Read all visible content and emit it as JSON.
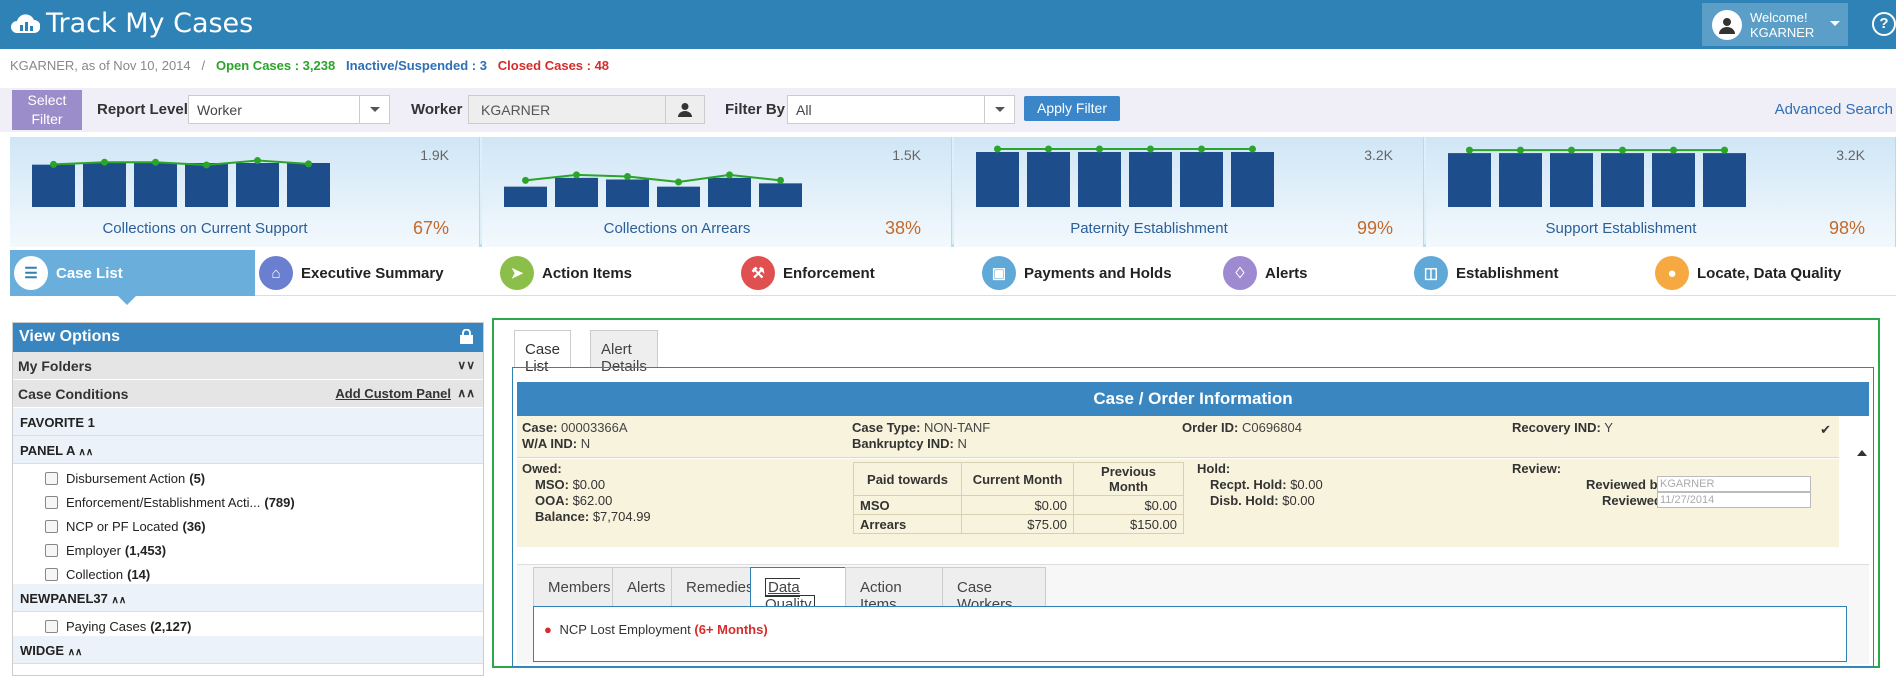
{
  "header": {
    "app_title": "Track My Cases",
    "welcome_line1": "Welcome!",
    "welcome_user": "KGARNER",
    "help": "?"
  },
  "status": {
    "prefix": "KGARNER, as of Nov 10, 2014",
    "sep": "/",
    "open": "Open Cases : 3,238",
    "inactive": "Inactive/Suspended : 3",
    "closed": "Closed Cases : 48"
  },
  "filters": {
    "select_filter": "Select Filter",
    "report_level_label": "Report Level",
    "report_level_value": "Worker",
    "worker_label": "Worker",
    "worker_value": "KGARNER",
    "filter_by_label": "Filter By",
    "filter_by_value": "All",
    "apply_label": "Apply Filter",
    "advanced_search": "Advanced Search"
  },
  "kpis": [
    {
      "name": "Collections on Current Support",
      "max": "1.9K",
      "pct": "67%",
      "bars": [
        0.77,
        0.8,
        0.8,
        0.8,
        0.8,
        0.8
      ],
      "line": [
        0.72,
        0.76,
        0.76,
        0.71,
        0.79,
        0.73
      ]
    },
    {
      "name": "Collections on Arrears",
      "max": "1.5K",
      "pct": "38%",
      "bars": [
        0.37,
        0.53,
        0.5,
        0.37,
        0.53,
        0.43
      ],
      "line": [
        0.43,
        0.53,
        0.5,
        0.4,
        0.53,
        0.43
      ]
    },
    {
      "name": "Paternity Establishment",
      "max": "3.2K",
      "pct": "99%",
      "bars": [
        1,
        1,
        1,
        1,
        1,
        1
      ],
      "line": [
        1,
        1,
        1,
        1,
        1,
        1
      ]
    },
    {
      "name": "Support Establishment",
      "max": "3.2K",
      "pct": "98%",
      "bars": [
        0.98,
        0.98,
        0.98,
        0.98,
        0.98,
        0.98
      ],
      "line": [
        0.98,
        0.98,
        0.98,
        0.98,
        0.98,
        0.98
      ]
    }
  ],
  "colors": {
    "accent": "#2f82b5",
    "bar": "#1d4d8a",
    "line": "#2aa52a"
  },
  "tabs": [
    {
      "label": "Case List",
      "icon": "list-icon",
      "color": "#6aaedc"
    },
    {
      "label": "Executive Summary",
      "icon": "home-icon",
      "color": "#6a7fd0"
    },
    {
      "label": "Action Items",
      "icon": "send-icon",
      "color": "#8cbf4a"
    },
    {
      "label": "Enforcement",
      "icon": "gavel-icon",
      "color": "#e05050"
    },
    {
      "label": "Payments and Holds",
      "icon": "money-icon",
      "color": "#5fa8d8"
    },
    {
      "label": "Alerts",
      "icon": "bell-icon",
      "color": "#9d8ad0"
    },
    {
      "label": "Establishment",
      "icon": "briefcase-icon",
      "color": "#5fa8d8"
    },
    {
      "label": "Locate, Data Quality",
      "icon": "location-pin-icon",
      "color": "#f5a940"
    }
  ],
  "left": {
    "view_options": "View Options",
    "my_folders": "My Folders",
    "case_conditions": "Case Conditions",
    "add_custom_panel": "Add Custom Panel",
    "favorite": "FAVORITE 1",
    "panel_a": "PANEL A",
    "panel_a_items": [
      {
        "label": "Disbursement Action",
        "count": "(5)"
      },
      {
        "label": "Enforcement/Establishment Acti...",
        "count": "(789)"
      },
      {
        "label": "NCP or PF Located",
        "count": "(36)"
      },
      {
        "label": "Employer",
        "count": "(1,453)"
      },
      {
        "label": "Collection",
        "count": "(14)"
      }
    ],
    "newpanel": "NEWPANEL37",
    "newpanel_items": [
      {
        "label": "Paying Cases",
        "count": "(2,127)"
      }
    ],
    "widge": "WIDGE"
  },
  "content": {
    "subtabs": [
      "Case List",
      "Alert Details"
    ],
    "title": "Case / Order Information",
    "case_label": "Case:",
    "case_value": "00003366A",
    "wa_label": "W/A IND:",
    "wa_value": "N",
    "case_type_label": "Case Type:",
    "case_type_value": "NON-TANF",
    "bankruptcy_label": "Bankruptcy IND:",
    "bankruptcy_value": "N",
    "order_label": "Order ID:",
    "order_value": "C0696804",
    "recovery_label": "Recovery IND:",
    "recovery_value": "Y",
    "owed_label": "Owed:",
    "mso_label": "MSO:",
    "mso_value": "$0.00",
    "ooa_label": "OOA:",
    "ooa_value": "$62.00",
    "balance_label": "Balance:",
    "balance_value": "$7,704.99",
    "paid_table": {
      "headers": [
        "Paid towards",
        "Current Month",
        "Previous Month"
      ],
      "rows": [
        [
          "MSO",
          "$0.00",
          "$0.00"
        ],
        [
          "Arrears",
          "$75.00",
          "$150.00"
        ]
      ]
    },
    "hold_label": "Hold:",
    "recpt_label": "Recpt. Hold:",
    "recpt_value": "$0.00",
    "disb_label": "Disb. Hold:",
    "disb_value": "$0.00",
    "review_label": "Review:",
    "reviewed_by_label": "Reviewed by:",
    "reviewed_by_value": "KGARNER",
    "reviewed_label": "Reviewed:",
    "reviewed_value": "11/27/2014",
    "lower_tabs": [
      "Members",
      "Alerts",
      "Remedies",
      "Data Quality",
      "Action Items",
      "Case Workers"
    ],
    "dq_text": "NCP Lost Employment",
    "dq_red": "(6+ Months)"
  }
}
